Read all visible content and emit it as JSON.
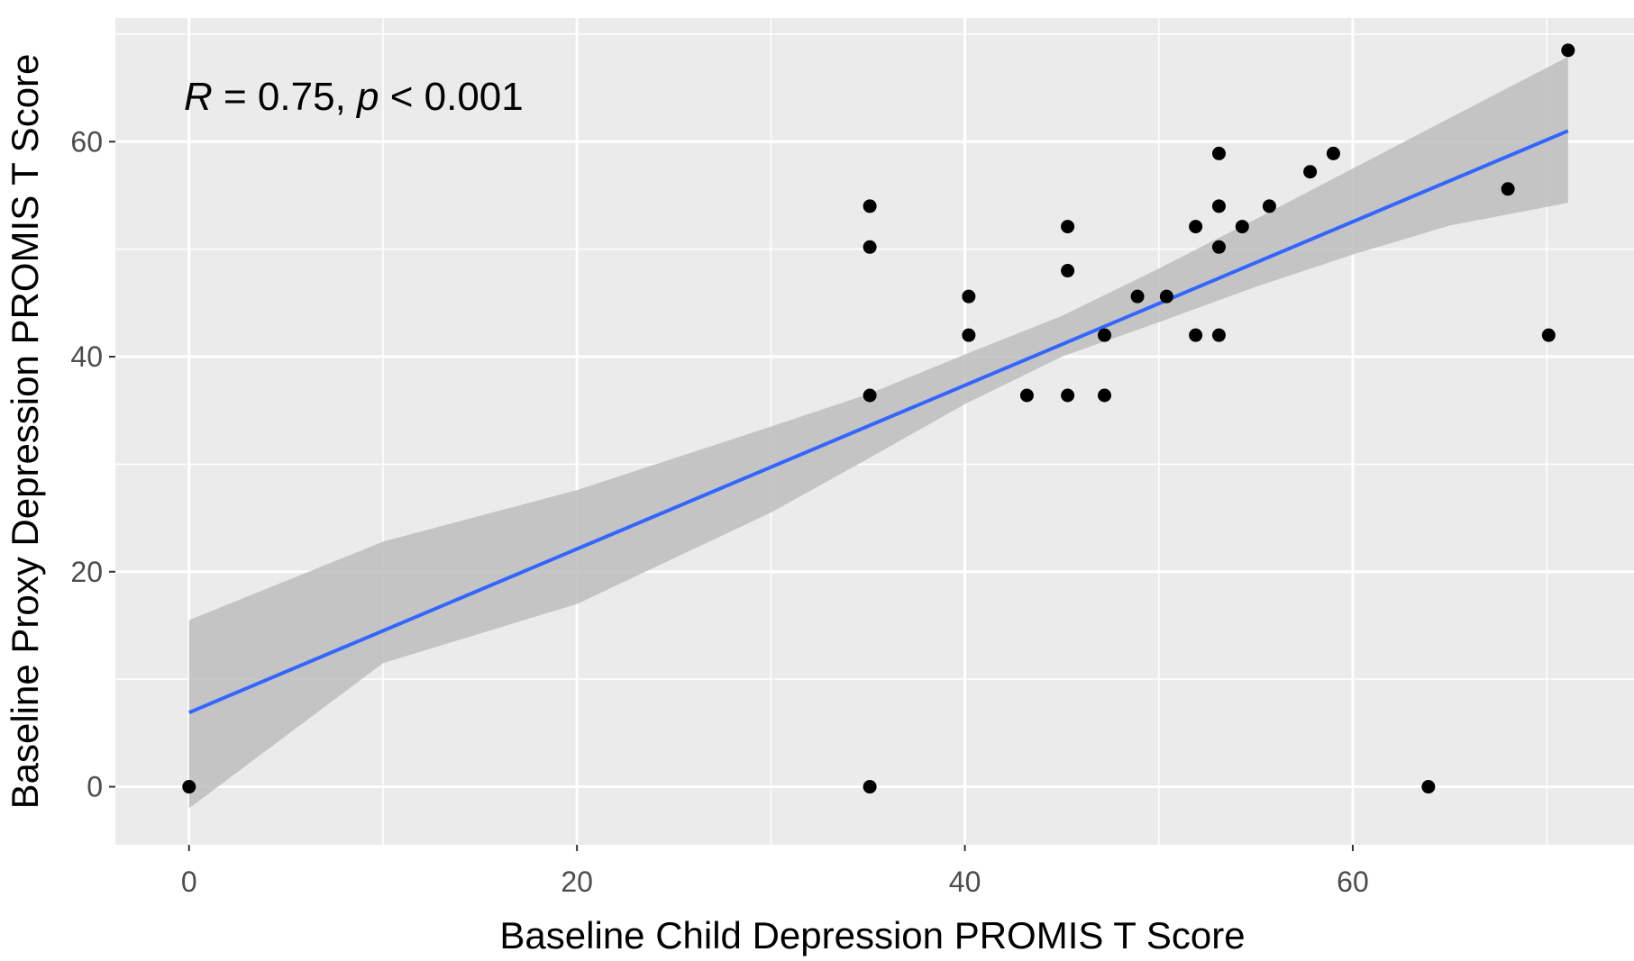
{
  "chart_data": {
    "type": "scatter",
    "xlabel": "Baseline Child Depression PROMIS T Score",
    "ylabel": "Baseline Proxy Depression PROMIS T Score",
    "xlim": [
      -3.8,
      74.5
    ],
    "ylim": [
      -5.4,
      71.5
    ],
    "x_ticks": [
      0,
      20,
      40,
      60
    ],
    "y_ticks": [
      0,
      20,
      40,
      60
    ],
    "grid": true,
    "background": "#ebebeb",
    "point_color": "#000000",
    "fit_line_color": "#3366ff",
    "ribbon_color": "#bdbdbd",
    "annotation": {
      "r_symbol": "R",
      "r_text": " = 0.75, ",
      "p_symbol": "p",
      "p_text": " < 0.001"
    },
    "points": [
      {
        "x": 0,
        "y": 0
      },
      {
        "x": 35.1,
        "y": 54
      },
      {
        "x": 35.1,
        "y": 50.2
      },
      {
        "x": 35.1,
        "y": 36.4
      },
      {
        "x": 35.1,
        "y": 0
      },
      {
        "x": 40.2,
        "y": 45.6
      },
      {
        "x": 40.2,
        "y": 42
      },
      {
        "x": 43.2,
        "y": 36.4
      },
      {
        "x": 45.3,
        "y": 52.1
      },
      {
        "x": 45.3,
        "y": 48
      },
      {
        "x": 45.3,
        "y": 36.4
      },
      {
        "x": 47.2,
        "y": 42
      },
      {
        "x": 47.2,
        "y": 36.4
      },
      {
        "x": 48.9,
        "y": 45.6
      },
      {
        "x": 50.4,
        "y": 45.6
      },
      {
        "x": 51.9,
        "y": 52.1
      },
      {
        "x": 51.9,
        "y": 42
      },
      {
        "x": 53.1,
        "y": 58.9
      },
      {
        "x": 53.1,
        "y": 54
      },
      {
        "x": 53.1,
        "y": 50.2
      },
      {
        "x": 53.1,
        "y": 42
      },
      {
        "x": 54.3,
        "y": 52.1
      },
      {
        "x": 55.7,
        "y": 54
      },
      {
        "x": 57.8,
        "y": 57.2
      },
      {
        "x": 59,
        "y": 58.9
      },
      {
        "x": 63.9,
        "y": 0
      },
      {
        "x": 68,
        "y": 55.6
      },
      {
        "x": 70.1,
        "y": 42
      },
      {
        "x": 71.1,
        "y": 68.5
      }
    ],
    "fit": {
      "x": [
        0,
        71.1
      ],
      "y": [
        6.9,
        61
      ]
    },
    "confidence_band": [
      {
        "x": 0,
        "lower": -2,
        "upper": 15.5
      },
      {
        "x": 10,
        "lower": 11.5,
        "upper": 22.8
      },
      {
        "x": 20,
        "lower": 17,
        "upper": 27.6
      },
      {
        "x": 30,
        "lower": 25.5,
        "upper": 33.5
      },
      {
        "x": 35,
        "lower": 30.5,
        "upper": 36.5
      },
      {
        "x": 40,
        "lower": 35.6,
        "upper": 40.2
      },
      {
        "x": 45,
        "lower": 40,
        "upper": 43.8
      },
      {
        "x": 50,
        "lower": 43.2,
        "upper": 48.2
      },
      {
        "x": 55,
        "lower": 46.5,
        "upper": 52.8
      },
      {
        "x": 60,
        "lower": 49.5,
        "upper": 57.5
      },
      {
        "x": 65,
        "lower": 52.2,
        "upper": 62.2
      },
      {
        "x": 71.1,
        "lower": 54.3,
        "upper": 67.9
      }
    ]
  }
}
